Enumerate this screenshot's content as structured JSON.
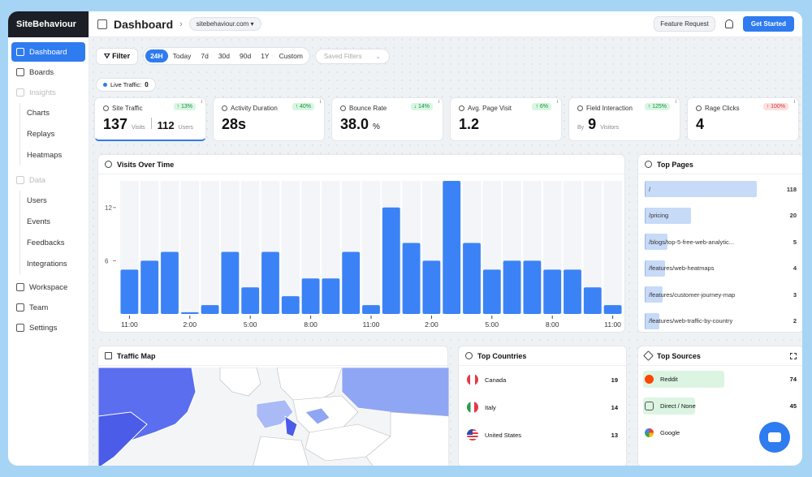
{
  "brand": "SiteBehaviour",
  "sidebar": {
    "items": [
      {
        "label": "Dashboard",
        "active": true
      },
      {
        "label": "Boards"
      },
      {
        "label": "Insights",
        "muted": true
      }
    ],
    "insights_sub": [
      "Charts",
      "Replays",
      "Heatmaps"
    ],
    "data_label": "Data",
    "data_sub": [
      "Users",
      "Events",
      "Feedbacks",
      "Integrations"
    ],
    "bottom": [
      "Workspace",
      "Team",
      "Settings"
    ]
  },
  "header": {
    "title": "Dashboard",
    "site": "sitebehaviour.com",
    "feature_request": "Feature Request",
    "get_started": "Get Started"
  },
  "filters": {
    "filter_label": "Filter",
    "ranges": [
      "24H",
      "Today",
      "7d",
      "30d",
      "90d",
      "1Y",
      "Custom"
    ],
    "selected": "24H",
    "saved_placeholder": "Saved Filters"
  },
  "live": {
    "label": "Live Traffic:",
    "value": "0"
  },
  "metrics": [
    {
      "label": "Site Traffic",
      "badge": "↑ 13%",
      "dir": "up",
      "value": "137",
      "unit": "Visits",
      "value2": "112",
      "unit2": "Users"
    },
    {
      "label": "Activity Duration",
      "badge": "↑ 40%",
      "dir": "up",
      "value": "28s"
    },
    {
      "label": "Bounce Rate",
      "badge": "↓ 14%",
      "dir": "up",
      "value": "38.0",
      "unit": "%"
    },
    {
      "label": "Avg. Page Visit",
      "badge": "↑ 6%",
      "dir": "up",
      "value": "1.2"
    },
    {
      "label": "Field Interaction",
      "badge": "↑ 125%",
      "dir": "up",
      "prefix": "By",
      "value": "9",
      "unit": "Visitors"
    },
    {
      "label": "Rage Clicks",
      "badge": "↑ 100%",
      "dir": "down",
      "value": "4"
    }
  ],
  "chart_data": {
    "type": "bar",
    "title": "Visits Over Time",
    "x_tick_labels": [
      "11:00",
      "2:00",
      "5:00",
      "8:00",
      "11:00",
      "2:00",
      "5:00",
      "8:00",
      "11:00"
    ],
    "y_ticks": [
      6,
      12
    ],
    "ylim": [
      0,
      15
    ],
    "values": [
      5,
      6,
      7,
      0.2,
      1,
      7,
      3,
      7,
      2,
      4,
      4,
      7,
      1,
      12,
      8,
      6,
      15,
      8,
      5,
      6,
      6,
      5,
      5,
      3,
      1
    ],
    "color": "#3b82f6",
    "grid": true
  },
  "top_pages": {
    "title": "Top Pages",
    "rows": [
      {
        "label": "/",
        "value": 118
      },
      {
        "label": "/pricing",
        "value": 20
      },
      {
        "label": "/blogs/top-5-free-web-analytic...",
        "value": 5
      },
      {
        "label": "/features/web-heatmaps",
        "value": 4
      },
      {
        "label": "/features/customer-journey-map",
        "value": 3
      },
      {
        "label": "/features/web-traffic-by-country",
        "value": 2
      }
    ]
  },
  "traffic_map": {
    "title": "Traffic Map"
  },
  "top_countries": {
    "title": "Top Countries",
    "rows": [
      {
        "label": "Canada",
        "value": 19
      },
      {
        "label": "Italy",
        "value": 14
      },
      {
        "label": "United States",
        "value": 13
      }
    ]
  },
  "top_sources": {
    "title": "Top Sources",
    "rows": [
      {
        "label": "Reddit",
        "value": 74,
        "color": "#ff4500"
      },
      {
        "label": "Direct / None",
        "value": 45,
        "color": "#555555"
      },
      {
        "label": "Google",
        "value": "",
        "color": "#4285f4"
      }
    ]
  }
}
